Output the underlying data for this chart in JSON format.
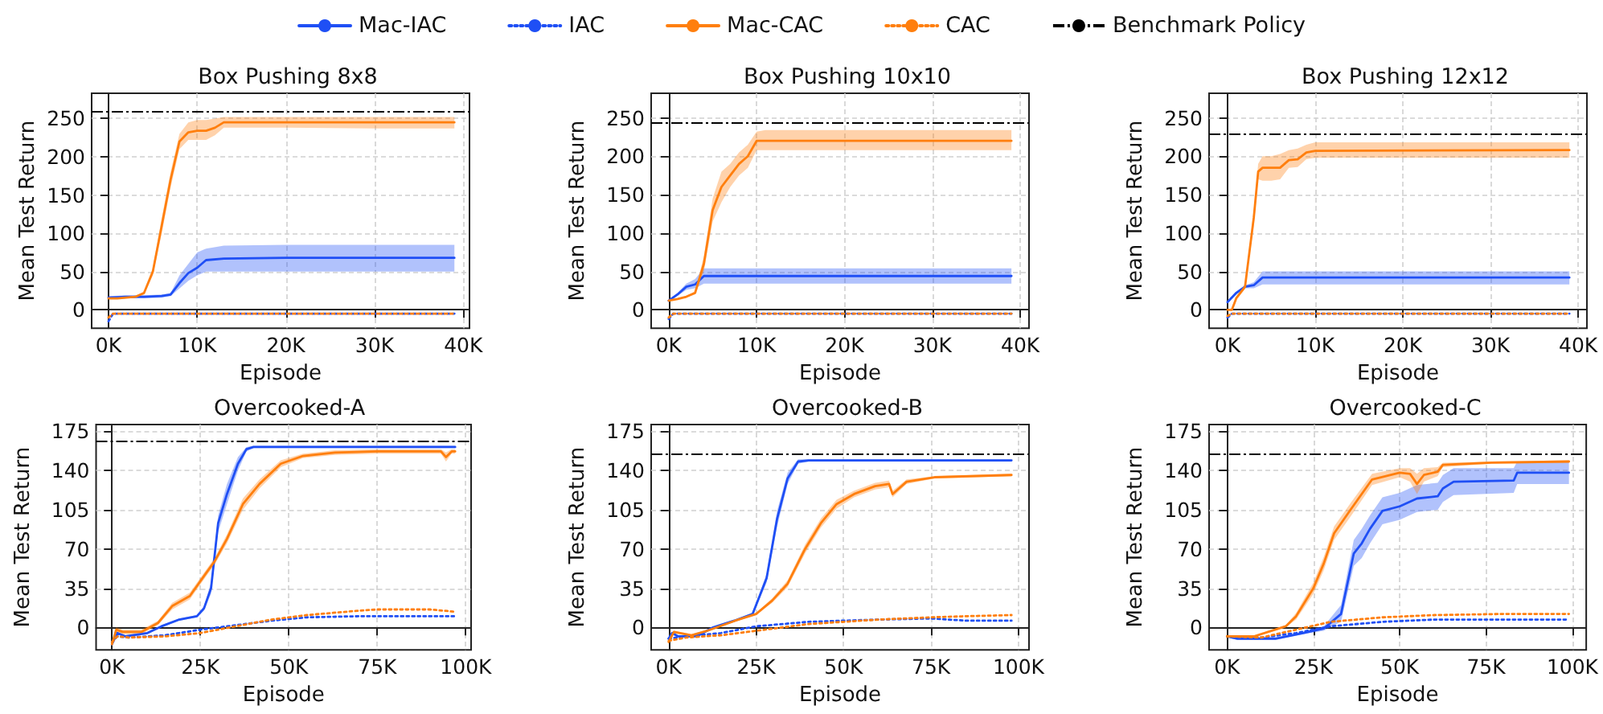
{
  "chart_data": [
    {
      "type": "line",
      "title": "Box Pushing 8x8",
      "xlabel": "Episode",
      "ylabel": "Mean Test Return",
      "legend": "top",
      "grid": true,
      "xlim": [
        -1900,
        40700
      ],
      "ylim": [
        -24,
        283
      ],
      "xticks": [
        {
          "value": 0,
          "label": "0K"
        },
        {
          "value": 10000,
          "label": "10K"
        },
        {
          "value": 20000,
          "label": "20K"
        },
        {
          "value": 30000,
          "label": "30K"
        },
        {
          "value": 40000,
          "label": "40K"
        }
      ],
      "yticks": [
        0,
        50,
        100,
        150,
        200,
        250
      ],
      "ref_lines": [
        {
          "axis": "y",
          "value": 260,
          "label": "Benchmark Policy",
          "color": "#000000",
          "line_style": "dashdot"
        }
      ],
      "series": [
        {
          "name": "Mac-IAC",
          "color": "#1f4ff5",
          "line_style": "solid",
          "x": [
            0,
            2000,
            4000,
            6000,
            7000,
            8000,
            9000,
            10000,
            11000,
            13000,
            20000,
            30000,
            39000
          ],
          "values": [
            16,
            17,
            17,
            18,
            20,
            35,
            48,
            55,
            65,
            67,
            68,
            68,
            68
          ],
          "lower": [
            14,
            15,
            15,
            16,
            18,
            28,
            38,
            45,
            50,
            50,
            50,
            50,
            50
          ],
          "upper": [
            18,
            19,
            19,
            20,
            22,
            45,
            60,
            75,
            80,
            84,
            85,
            85,
            85
          ]
        },
        {
          "name": "IAC",
          "color": "#1f4ff5",
          "line_style": "dotted",
          "x": [
            0,
            500,
            39000
          ],
          "values": [
            -15,
            -5,
            -5
          ]
        },
        {
          "name": "Mac-CAC",
          "color": "#ff7f0e",
          "line_style": "solid",
          "x": [
            0,
            1000,
            2000,
            3000,
            4000,
            5000,
            6000,
            7000,
            8000,
            9000,
            10000,
            11000,
            12000,
            13000,
            20000,
            30000,
            39000
          ],
          "values": [
            15,
            15,
            16,
            17,
            22,
            50,
            110,
            170,
            220,
            232,
            234,
            234,
            238,
            245,
            245,
            245,
            245
          ],
          "lower": [
            14,
            14,
            15,
            16,
            20,
            45,
            100,
            160,
            210,
            222,
            222,
            222,
            228,
            238,
            238,
            237,
            237
          ],
          "upper": [
            16,
            16,
            17,
            18,
            24,
            55,
            120,
            180,
            230,
            245,
            248,
            248,
            250,
            252,
            252,
            252,
            252
          ]
        },
        {
          "name": "CAC",
          "color": "#ff7f0e",
          "line_style": "dotted",
          "x": [
            0,
            500,
            39000
          ],
          "values": [
            -10,
            -5,
            -5
          ]
        }
      ]
    },
    {
      "type": "line",
      "title": "Box Pushing 10x10",
      "xlabel": "Episode",
      "ylabel": "Mean Test Return",
      "grid": true,
      "xlim": [
        -2000,
        41000
      ],
      "ylim": [
        -24,
        282
      ],
      "xticks": [
        {
          "value": 0,
          "label": "0K"
        },
        {
          "value": 10000,
          "label": "10K"
        },
        {
          "value": 20000,
          "label": "20K"
        },
        {
          "value": 30000,
          "label": "30K"
        },
        {
          "value": 40000,
          "label": "40K"
        }
      ],
      "yticks": [
        0,
        50,
        100,
        150,
        200,
        250
      ],
      "ref_lines": [
        {
          "axis": "y",
          "value": 244,
          "color": "#000000",
          "line_style": "dashdot"
        }
      ],
      "series": [
        {
          "color": "#1f4ff5",
          "line_style": "solid",
          "x": [
            0,
            1000,
            2000,
            3000,
            4000,
            39000
          ],
          "values": [
            12,
            20,
            30,
            33,
            44,
            44
          ],
          "lower": [
            11,
            18,
            26,
            28,
            34,
            34
          ],
          "upper": [
            13,
            22,
            34,
            40,
            54,
            54
          ]
        },
        {
          "color": "#1f4ff5",
          "line_style": "dotted",
          "x": [
            0,
            500,
            39000
          ],
          "values": [
            -12,
            -5,
            -5
          ]
        },
        {
          "color": "#ff7f0e",
          "line_style": "solid",
          "x": [
            0,
            1000,
            2000,
            3000,
            4000,
            5000,
            6000,
            7000,
            8000,
            9000,
            10000,
            11000,
            39000
          ],
          "values": [
            12,
            14,
            17,
            22,
            60,
            130,
            160,
            175,
            190,
            200,
            220,
            220,
            220
          ],
          "lower": [
            11,
            13,
            16,
            20,
            50,
            115,
            140,
            160,
            175,
            185,
            208,
            208,
            208
          ],
          "upper": [
            13,
            15,
            18,
            24,
            70,
            145,
            180,
            190,
            205,
            215,
            232,
            234,
            234
          ]
        },
        {
          "color": "#ff7f0e",
          "line_style": "dotted",
          "x": [
            0,
            500,
            39000
          ],
          "values": [
            -10,
            -5,
            -5
          ]
        }
      ]
    },
    {
      "type": "line",
      "title": "Box Pushing 12x12",
      "xlabel": "Episode",
      "ylabel": "Mean Test Return",
      "grid": true,
      "xlim": [
        -2100,
        41000
      ],
      "ylim": [
        -24,
        282
      ],
      "xticks": [
        {
          "value": 0,
          "label": "0K"
        },
        {
          "value": 10000,
          "label": "10K"
        },
        {
          "value": 20000,
          "label": "20K"
        },
        {
          "value": 30000,
          "label": "30K"
        },
        {
          "value": 40000,
          "label": "40K"
        }
      ],
      "yticks": [
        0,
        50,
        100,
        150,
        200,
        250
      ],
      "ref_lines": [
        {
          "axis": "y",
          "value": 229,
          "color": "#000000",
          "line_style": "dashdot"
        }
      ],
      "series": [
        {
          "color": "#1f4ff5",
          "line_style": "solid",
          "x": [
            0,
            1000,
            2000,
            3000,
            4000,
            39000
          ],
          "values": [
            10,
            22,
            30,
            32,
            42,
            42
          ],
          "lower": [
            9,
            20,
            28,
            28,
            33,
            33
          ],
          "upper": [
            11,
            24,
            32,
            36,
            50,
            50
          ]
        },
        {
          "color": "#1f4ff5",
          "line_style": "dotted",
          "x": [
            0,
            500,
            39000
          ],
          "values": [
            -10,
            -5,
            -5
          ]
        },
        {
          "color": "#ff7f0e",
          "line_style": "solid",
          "x": [
            0,
            500,
            1000,
            2000,
            3000,
            3500,
            4000,
            5000,
            6000,
            7000,
            8000,
            9000,
            10000,
            39000
          ],
          "values": [
            0,
            0,
            15,
            30,
            120,
            180,
            185,
            185,
            185,
            195,
            196,
            205,
            207,
            208
          ],
          "lower": [
            -1,
            -1,
            13,
            27,
            110,
            170,
            168,
            168,
            170,
            185,
            186,
            196,
            198,
            198
          ],
          "upper": [
            1,
            1,
            17,
            33,
            130,
            190,
            200,
            200,
            203,
            208,
            210,
            215,
            218,
            218
          ]
        },
        {
          "color": "#ff7f0e",
          "line_style": "dotted",
          "x": [
            0,
            500,
            39000
          ],
          "values": [
            -8,
            -5,
            -5
          ]
        }
      ]
    },
    {
      "type": "line",
      "title": "Overcooked-A",
      "xlabel": "Episode",
      "ylabel": "Mean Test Return",
      "grid": true,
      "xlim": [
        -4500,
        101500
      ],
      "ylim": [
        -20,
        181
      ],
      "xticks": [
        {
          "value": 0,
          "label": "0K"
        },
        {
          "value": 25000,
          "label": "25K"
        },
        {
          "value": 50000,
          "label": "50K"
        },
        {
          "value": 75000,
          "label": "75K"
        },
        {
          "value": 100000,
          "label": "100K"
        }
      ],
      "yticks": [
        0,
        35,
        70,
        105,
        140,
        175
      ],
      "ref_lines": [
        {
          "axis": "y",
          "value": 167,
          "color": "#000000",
          "line_style": "dashdot"
        }
      ],
      "series": [
        {
          "color": "#1f4ff5",
          "line_style": "solid",
          "x": [
            0,
            1500,
            3800,
            10000,
            14000,
            19000,
            24000,
            26000,
            28000,
            30000,
            32500,
            35600,
            38000,
            40000,
            97000
          ],
          "values": [
            -15,
            -5,
            -8,
            -5,
            1,
            7,
            10,
            17,
            35,
            93,
            119,
            146,
            159,
            161,
            161
          ],
          "lower": [
            -16,
            -6,
            -9,
            -6,
            0,
            6,
            9,
            15,
            30,
            85,
            110,
            140,
            157,
            160,
            160
          ],
          "upper": [
            -14,
            -4,
            -7,
            -4,
            2,
            8,
            11,
            19,
            40,
            100,
            128,
            152,
            161,
            162,
            162
          ]
        },
        {
          "color": "#1f4ff5",
          "line_style": "dotted",
          "x": [
            0,
            1500,
            5000,
            15000,
            25000,
            35000,
            45000,
            55000,
            70000,
            97000
          ],
          "values": [
            -13,
            -8,
            -9,
            -7,
            -2,
            2,
            6,
            9,
            10,
            10
          ]
        },
        {
          "color": "#ff7f0e",
          "line_style": "solid",
          "x": [
            0,
            1200,
            3000,
            8300,
            13000,
            17000,
            22000,
            26500,
            29000,
            32500,
            37000,
            41700,
            47700,
            54000,
            63000,
            75000,
            93000,
            94400,
            96000,
            97000
          ],
          "values": [
            -15,
            -2,
            -4,
            -4,
            4,
            19,
            28,
            48,
            59,
            79,
            110,
            128,
            146,
            153,
            156,
            157,
            157,
            152,
            157,
            157
          ],
          "lower": [
            -16,
            -4,
            -6,
            -6,
            2,
            16,
            25,
            45,
            56,
            75,
            105,
            124,
            143,
            151,
            154,
            155,
            155,
            148,
            155,
            155
          ],
          "upper": [
            -14,
            0,
            -2,
            -2,
            6,
            22,
            31,
            51,
            62,
            83,
            115,
            132,
            149,
            155,
            158,
            159,
            159,
            156,
            159,
            159
          ]
        },
        {
          "color": "#ff7f0e",
          "line_style": "dotted",
          "x": [
            0,
            1500,
            5000,
            15000,
            25000,
            35000,
            45000,
            55000,
            70000,
            75000,
            90000,
            97000
          ],
          "values": [
            -13,
            -8,
            -9,
            -8,
            -5,
            1,
            7,
            11,
            15,
            16,
            16,
            14
          ]
        }
      ]
    },
    {
      "type": "line",
      "title": "Overcooked-B",
      "xlabel": "Episode",
      "ylabel": "Mean Test Return",
      "grid": true,
      "xlim": [
        -5000,
        103000
      ],
      "ylim": [
        -20,
        181
      ],
      "xticks": [
        {
          "value": 0,
          "label": "0K"
        },
        {
          "value": 25000,
          "label": "25K"
        },
        {
          "value": 50000,
          "label": "50K"
        },
        {
          "value": 75000,
          "label": "75K"
        },
        {
          "value": 100000,
          "label": "100K"
        }
      ],
      "yticks": [
        0,
        35,
        70,
        105,
        140,
        175
      ],
      "ref_lines": [
        {
          "axis": "y",
          "value": 155,
          "color": "#000000",
          "line_style": "dashdot"
        }
      ],
      "series": [
        {
          "color": "#1f4ff5",
          "line_style": "solid",
          "x": [
            0,
            1000,
            2700,
            8000,
            12700,
            18800,
            24000,
            28000,
            31000,
            34000,
            37000,
            40000,
            98000
          ],
          "values": [
            -10,
            -5,
            -8,
            -8,
            0,
            6,
            12,
            44,
            97,
            133,
            148,
            149,
            149
          ],
          "lower": [
            -11,
            -6,
            -9,
            -9,
            -1,
            5,
            11,
            40,
            90,
            128,
            146,
            148,
            148
          ],
          "upper": [
            -9,
            -4,
            -7,
            -7,
            1,
            7,
            13,
            48,
            104,
            138,
            150,
            150,
            150
          ]
        },
        {
          "color": "#1f4ff5",
          "line_style": "dotted",
          "x": [
            0,
            5000,
            15000,
            25000,
            40000,
            60000,
            75000,
            85000,
            98000
          ],
          "values": [
            -10,
            -8,
            -5,
            1,
            5,
            7,
            8,
            6,
            6
          ]
        },
        {
          "color": "#ff7f0e",
          "line_style": "solid",
          "x": [
            0,
            1500,
            6500,
            11000,
            19000,
            25000,
            29600,
            34000,
            39000,
            43500,
            48000,
            53000,
            59000,
            63000,
            64000,
            68000,
            76000,
            98000
          ],
          "values": [
            -13,
            -4,
            -7,
            -3,
            6,
            12,
            24,
            39,
            70,
            93,
            110,
            119,
            126,
            128,
            119,
            130,
            134,
            136
          ],
          "lower": [
            -14,
            -5,
            -8,
            -4,
            5,
            11,
            22,
            36,
            66,
            89,
            106,
            116,
            123,
            125,
            116,
            128,
            133,
            135
          ],
          "upper": [
            -12,
            -3,
            -6,
            -2,
            7,
            13,
            26,
            42,
            74,
            97,
            114,
            122,
            129,
            131,
            122,
            132,
            135,
            137
          ]
        },
        {
          "color": "#ff7f0e",
          "line_style": "dotted",
          "x": [
            0,
            5000,
            15000,
            25000,
            40000,
            60000,
            75000,
            85000,
            98000
          ],
          "values": [
            -12,
            -9,
            -7,
            -3,
            3,
            7,
            9,
            10,
            11
          ]
        }
      ]
    },
    {
      "type": "line",
      "title": "Overcooked-C",
      "xlabel": "Episode",
      "ylabel": "Mean Test Return",
      "grid": true,
      "xlim": [
        -5200,
        104000
      ],
      "ylim": [
        -20,
        181
      ],
      "xticks": [
        {
          "value": 0,
          "label": "0K"
        },
        {
          "value": 25000,
          "label": "25K"
        },
        {
          "value": 50000,
          "label": "50K"
        },
        {
          "value": 75000,
          "label": "75K"
        },
        {
          "value": 100000,
          "label": "100K"
        }
      ],
      "yticks": [
        0,
        35,
        70,
        105,
        140,
        175
      ],
      "ref_lines": [
        {
          "axis": "y",
          "value": 155,
          "color": "#000000",
          "line_style": "dashdot"
        }
      ],
      "series": [
        {
          "color": "#1f4ff5",
          "line_style": "solid",
          "x": [
            0,
            3000,
            14000,
            22000,
            28000,
            33000,
            36700,
            39000,
            41400,
            45000,
            50000,
            55000,
            61000,
            62500,
            65600,
            83000,
            84000,
            99000
          ],
          "values": [
            -8,
            -10,
            -10,
            -5,
            -1,
            12,
            66,
            75,
            88,
            104,
            108,
            115,
            117,
            124,
            130,
            131,
            138,
            138
          ],
          "lower": [
            -9,
            -11,
            -11,
            -6,
            -3,
            5,
            55,
            62,
            75,
            92,
            96,
            103,
            105,
            112,
            118,
            120,
            128,
            128
          ],
          "upper": [
            -7,
            -9,
            -9,
            -4,
            1,
            20,
            78,
            88,
            100,
            116,
            120,
            127,
            129,
            136,
            142,
            142,
            148,
            148
          ]
        },
        {
          "color": "#1f4ff5",
          "line_style": "dotted",
          "x": [
            0,
            10000,
            20000,
            30000,
            45000,
            60000,
            80000,
            99000
          ],
          "values": [
            -8,
            -9,
            -5,
            1,
            5,
            7,
            7,
            7
          ]
        },
        {
          "color": "#ff7f0e",
          "line_style": "solid",
          "x": [
            0,
            7800,
            17000,
            20000,
            25000,
            28000,
            31000,
            36000,
            42000,
            50000,
            53000,
            55000,
            57000,
            61000,
            62500,
            76600,
            99000
          ],
          "values": [
            -8,
            -8,
            1,
            10,
            35,
            57,
            84,
            106,
            132,
            138,
            137,
            128,
            136,
            139,
            145,
            147,
            148
          ],
          "lower": [
            -9,
            -9,
            0,
            7,
            30,
            51,
            78,
            100,
            127,
            134,
            130,
            119,
            130,
            135,
            143,
            146,
            147
          ],
          "upper": [
            -7,
            -7,
            2,
            13,
            40,
            63,
            90,
            112,
            137,
            142,
            142,
            137,
            142,
            143,
            147,
            148,
            149
          ]
        },
        {
          "color": "#ff7f0e",
          "line_style": "dotted",
          "x": [
            0,
            10000,
            20000,
            30000,
            45000,
            60000,
            80000,
            99000
          ],
          "values": [
            -8,
            -9,
            -2,
            5,
            9,
            11,
            12,
            12
          ]
        }
      ]
    }
  ]
}
